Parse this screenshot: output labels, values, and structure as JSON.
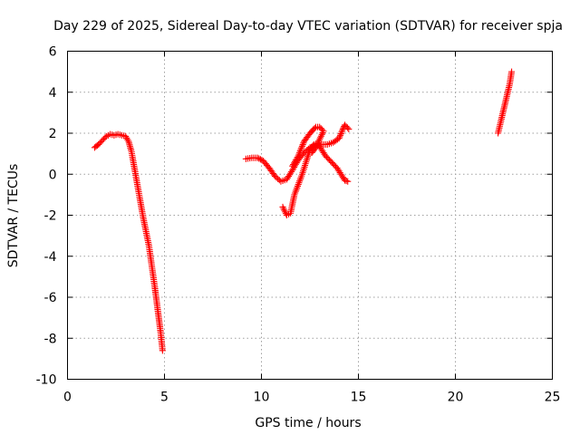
{
  "chart_data": {
    "type": "scatter",
    "title": "Day 229 of 2025, Sidereal Day-to-day VTEC variation (SDTVAR) for receiver spja",
    "xlabel": "GPS time / hours",
    "ylabel": "SDTVAR / TECUs",
    "xlim": [
      0,
      25
    ],
    "ylim": [
      -10,
      6
    ],
    "xticks": [
      0,
      5,
      10,
      15,
      20,
      25
    ],
    "yticks": [
      -10,
      -8,
      -6,
      -4,
      -2,
      0,
      2,
      4,
      6
    ],
    "grid": true,
    "marker": "+",
    "series": [
      {
        "name": "SDTVAR",
        "color": "#ff0000",
        "segments": [
          [
            [
              1.4,
              1.3
            ],
            [
              1.6,
              1.45
            ],
            [
              1.8,
              1.65
            ],
            [
              2.0,
              1.85
            ],
            [
              2.2,
              1.95
            ],
            [
              2.4,
              1.9
            ],
            [
              2.6,
              1.95
            ],
            [
              2.8,
              1.9
            ],
            [
              3.0,
              1.85
            ],
            [
              3.15,
              1.6
            ],
            [
              3.3,
              1.1
            ],
            [
              3.45,
              0.3
            ],
            [
              3.6,
              -0.5
            ],
            [
              3.75,
              -1.3
            ],
            [
              3.9,
              -2.1
            ],
            [
              4.05,
              -2.8
            ],
            [
              4.2,
              -3.5
            ],
            [
              4.35,
              -4.5
            ],
            [
              4.5,
              -5.5
            ],
            [
              4.65,
              -6.6
            ],
            [
              4.8,
              -7.7
            ],
            [
              4.9,
              -8.6
            ]
          ],
          [
            [
              9.2,
              0.75
            ],
            [
              9.5,
              0.8
            ],
            [
              9.8,
              0.8
            ],
            [
              10.1,
              0.65
            ],
            [
              10.4,
              0.3
            ],
            [
              10.7,
              -0.1
            ],
            [
              11.0,
              -0.35
            ],
            [
              11.3,
              -0.25
            ],
            [
              11.6,
              0.2
            ],
            [
              11.9,
              0.7
            ],
            [
              12.2,
              1.05
            ],
            [
              12.5,
              1.3
            ],
            [
              12.8,
              1.4
            ],
            [
              13.1,
              1.45
            ],
            [
              13.4,
              1.45
            ],
            [
              13.7,
              1.55
            ],
            [
              14.0,
              1.75
            ],
            [
              14.2,
              2.2
            ],
            [
              14.3,
              2.4
            ],
            [
              14.5,
              2.2
            ]
          ],
          [
            [
              11.1,
              -1.6
            ],
            [
              11.3,
              -2.0
            ],
            [
              11.5,
              -1.9
            ],
            [
              11.7,
              -1.0
            ],
            [
              11.9,
              -0.5
            ],
            [
              12.1,
              0.0
            ],
            [
              12.3,
              0.6
            ],
            [
              12.5,
              1.2
            ],
            [
              12.7,
              1.45
            ],
            [
              12.9,
              1.5
            ],
            [
              13.1,
              1.2
            ],
            [
              13.3,
              0.9
            ],
            [
              13.5,
              0.7
            ],
            [
              13.7,
              0.5
            ],
            [
              13.9,
              0.3
            ],
            [
              14.1,
              0.0
            ],
            [
              14.3,
              -0.3
            ],
            [
              14.45,
              -0.35
            ]
          ],
          [
            [
              11.6,
              0.4
            ],
            [
              11.9,
              0.9
            ],
            [
              12.2,
              1.6
            ],
            [
              12.5,
              2.0
            ],
            [
              12.8,
              2.3
            ],
            [
              13.0,
              2.3
            ],
            [
              13.2,
              2.1
            ],
            [
              13.0,
              1.7
            ],
            [
              12.8,
              1.3
            ],
            [
              12.6,
              1.05
            ]
          ],
          [
            [
              22.2,
              2.0
            ],
            [
              22.35,
              2.6
            ],
            [
              22.5,
              3.2
            ],
            [
              22.65,
              3.8
            ],
            [
              22.8,
              4.4
            ],
            [
              22.9,
              5.0
            ]
          ]
        ]
      }
    ]
  }
}
